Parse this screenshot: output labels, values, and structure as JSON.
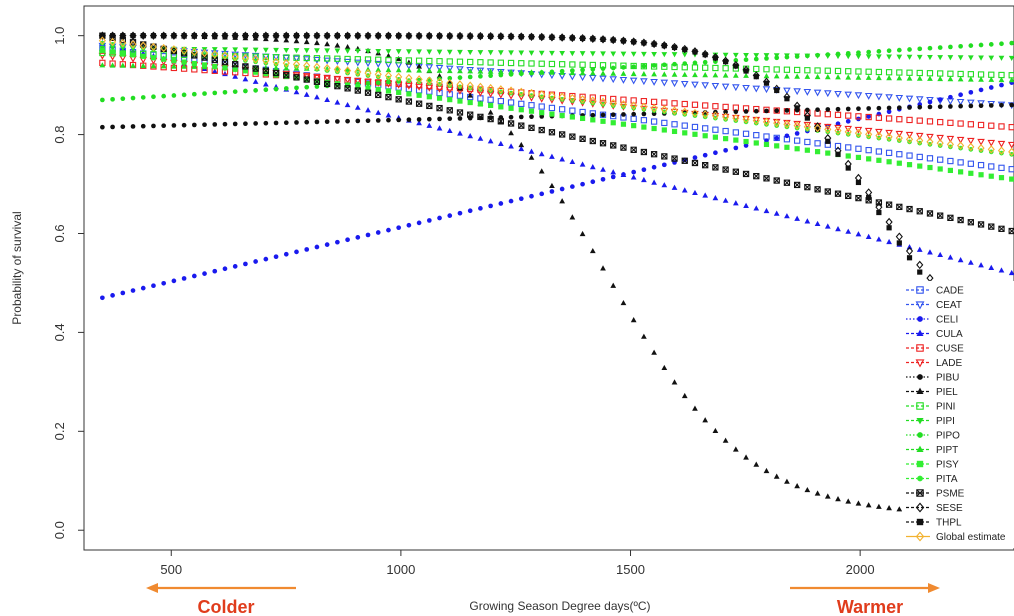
{
  "chart_data": {
    "type": "scatter",
    "xlabel": "Growing Season Degree days(ºC)",
    "ylabel": "Probability of survival",
    "xlim": [
      310,
      2335
    ],
    "ylim": [
      -0.04,
      1.06
    ],
    "xticks": [
      500,
      1000,
      1500,
      2000
    ],
    "yticks": [
      0.0,
      0.2,
      0.4,
      0.6,
      0.8,
      1.0
    ],
    "x_start": 350,
    "x_end": 2330,
    "points_per_series": 90,
    "legend_position": "bottom-right",
    "annotations": [
      {
        "text": "Colder",
        "color": "#e03c1c",
        "arrow_color": "#f08a30",
        "direction": "left"
      },
      {
        "text": "Warmer",
        "color": "#e03c1c",
        "arrow_color": "#f08a30",
        "direction": "right"
      }
    ],
    "series": [
      {
        "name": "CADE",
        "color": "#3355ee",
        "marker": "open-square",
        "linestyle": "dash",
        "curve": "linear",
        "y_start": 0.975,
        "y_end": 0.73
      },
      {
        "name": "CEAT",
        "color": "#3355ee",
        "marker": "open-triangle-down",
        "linestyle": "dash",
        "curve": "linear",
        "y_start": 0.98,
        "y_end": 0.86
      },
      {
        "name": "CELI",
        "color": "#1a1aee",
        "marker": "filled-circle",
        "linestyle": "dot",
        "curve": "linear",
        "y_start": 0.47,
        "y_end": 0.905
      },
      {
        "name": "CULA",
        "color": "#1a1aee",
        "marker": "filled-triangle",
        "linestyle": "dash",
        "curve": "linear",
        "y_start": 0.985,
        "y_end": 0.52
      },
      {
        "name": "CUSE",
        "color": "#ee2222",
        "marker": "open-square",
        "linestyle": "dash",
        "curve": "linear",
        "y_start": 0.945,
        "y_end": 0.815
      },
      {
        "name": "LADE",
        "color": "#ee2222",
        "marker": "open-triangle-down",
        "linestyle": "dash",
        "curve": "linear",
        "y_start": 0.96,
        "y_end": 0.78
      },
      {
        "name": "PIBU",
        "color": "#111111",
        "marker": "filled-circle",
        "linestyle": "dot",
        "curve": "linear",
        "y_start": 0.815,
        "y_end": 0.86
      },
      {
        "name": "PIEL",
        "color": "#111111",
        "marker": "filled-triangle",
        "linestyle": "dash",
        "curve": "logistic",
        "y_start": 1.0,
        "y_end": 0.03
      },
      {
        "name": "PINI",
        "color": "#22dd22",
        "marker": "open-square",
        "linestyle": "dash",
        "curve": "linear",
        "y_start": 0.965,
        "y_end": 0.92
      },
      {
        "name": "PIPI",
        "color": "#22dd22",
        "marker": "filled-triangle-down",
        "linestyle": "dash",
        "curve": "linear",
        "y_start": 0.975,
        "y_end": 0.955
      },
      {
        "name": "PIPO",
        "color": "#22dd22",
        "marker": "filled-circle",
        "linestyle": "dot",
        "curve": "linear",
        "y_start": 0.87,
        "y_end": 0.985
      },
      {
        "name": "PIPT",
        "color": "#22dd22",
        "marker": "filled-triangle",
        "linestyle": "dash",
        "curve": "linear",
        "y_start": 0.94,
        "y_end": 0.91
      },
      {
        "name": "PISY",
        "color": "#33ee33",
        "marker": "filled-square",
        "linestyle": "dash",
        "curve": "linear",
        "y_start": 0.97,
        "y_end": 0.71
      },
      {
        "name": "PITA",
        "color": "#33ee33",
        "marker": "filled-circle",
        "linestyle": "dash",
        "curve": "linear",
        "y_start": 0.985,
        "y_end": 0.76
      },
      {
        "name": "PSME",
        "color": "#111111",
        "marker": "star-square",
        "linestyle": "dash",
        "curve": "linear",
        "y_start": 1.0,
        "y_end": 0.605
      },
      {
        "name": "SESE",
        "color": "#111111",
        "marker": "open-diamond",
        "linestyle": "dash",
        "curve": "logistic",
        "y_start": 1.0,
        "y_end": 0.36
      },
      {
        "name": "THPL",
        "color": "#111111",
        "marker": "filled-square",
        "linestyle": "dash",
        "curve": "logistic",
        "y_start": 1.0,
        "y_end": 0.34
      },
      {
        "name": "Global estimate",
        "color": "#f2b230",
        "marker": "open-diamond",
        "linestyle": "solid",
        "curve": "linear",
        "y_start": 0.99,
        "y_end": 0.765
      }
    ]
  }
}
